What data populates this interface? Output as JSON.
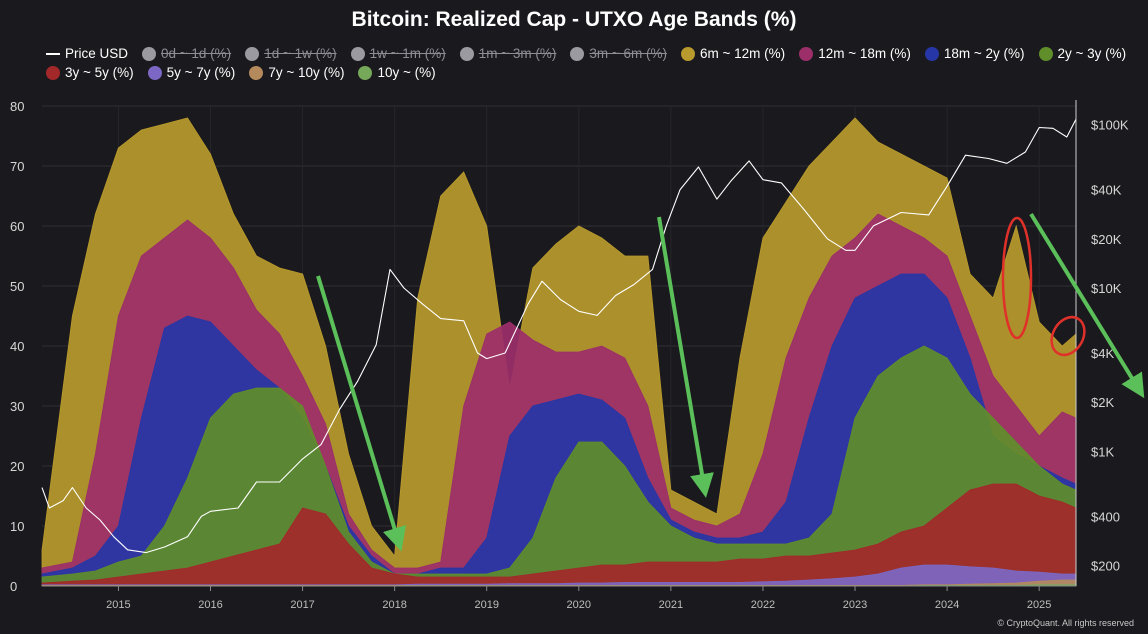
{
  "chart_data": {
    "type": "area",
    "title": "Bitcoin: Realized Cap - UTXO Age Bands (%)",
    "footer": "© CryptoQuant. All rights reserved",
    "stacking": "cumulative",
    "x_unit": "year",
    "x": [
      2014.17,
      2014.5,
      2014.75,
      2015.0,
      2015.25,
      2015.5,
      2015.75,
      2016.0,
      2016.25,
      2016.5,
      2016.75,
      2017.0,
      2017.25,
      2017.5,
      2017.75,
      2018.0,
      2018.25,
      2018.5,
      2018.75,
      2019.0,
      2019.25,
      2019.5,
      2019.75,
      2020.0,
      2020.25,
      2020.5,
      2020.75,
      2021.0,
      2021.25,
      2021.5,
      2021.75,
      2022.0,
      2022.25,
      2022.5,
      2022.75,
      2023.0,
      2023.25,
      2023.5,
      2023.75,
      2024.0,
      2024.25,
      2024.5,
      2024.75,
      2025.0,
      2025.25,
      2025.4
    ],
    "left_axis": {
      "ticks": [
        0,
        10,
        20,
        30,
        40,
        50,
        60,
        70,
        80
      ],
      "range": [
        0,
        80
      ]
    },
    "right_axis": {
      "scale": "log",
      "ticks": [
        200,
        400,
        1000,
        2000,
        4000,
        10000,
        20000,
        40000,
        100000
      ],
      "tick_labels": [
        "$200",
        "$400",
        "$1K",
        "$2K",
        "$4K",
        "$10K",
        "$20K",
        "$40K",
        "$100K"
      ],
      "range": [
        150,
        130000
      ]
    },
    "x_ticks": [
      2015,
      2016,
      2017,
      2018,
      2019,
      2020,
      2021,
      2022,
      2023,
      2024,
      2025
    ],
    "x_tick_labels": [
      "2015",
      "2016",
      "2017",
      "2018",
      "2019",
      "2020",
      "2021",
      "2022",
      "2023",
      "2024",
      "2025"
    ],
    "legend": [
      {
        "label": "Price USD",
        "type": "line",
        "color": "#ffffff",
        "active": true
      },
      {
        "label": "0d ~ 1d (%)",
        "color": "#9a9aa0",
        "active": false
      },
      {
        "label": "1d ~ 1w (%)",
        "color": "#9a9aa0",
        "active": false
      },
      {
        "label": "1w ~ 1m (%)",
        "color": "#9a9aa0",
        "active": false
      },
      {
        "label": "1m ~ 3m (%)",
        "color": "#9a9aa0",
        "active": false
      },
      {
        "label": "3m ~ 6m (%)",
        "color": "#9a9aa0",
        "active": false
      },
      {
        "label": "6m ~ 12m (%)",
        "color": "#b99a2c",
        "active": true
      },
      {
        "label": "12m ~ 18m (%)",
        "color": "#9c2e6a",
        "active": true
      },
      {
        "label": "18m ~ 2y (%)",
        "color": "#2736a6",
        "active": true
      },
      {
        "label": "2y ~ 3y (%)",
        "color": "#5f8e2a",
        "active": true
      },
      {
        "label": "3y ~ 5y (%)",
        "color": "#a3282a",
        "active": true
      },
      {
        "label": "5y ~ 7y (%)",
        "color": "#7c68c4",
        "active": true
      },
      {
        "label": "7y ~ 10y (%)",
        "color": "#b48a5c",
        "active": true
      },
      {
        "label": "10y ~ (%)",
        "color": "#76a85a",
        "active": true
      }
    ],
    "series": [
      {
        "name": "6m ~ 12m (%)",
        "color": "#b99a2c",
        "values": [
          6,
          45,
          62,
          73,
          76,
          77,
          78,
          72,
          62,
          55,
          53,
          52,
          40,
          22,
          10,
          5,
          48,
          65,
          69,
          60,
          33,
          53,
          57,
          60,
          58,
          55,
          55,
          16,
          14,
          12,
          38,
          58,
          64,
          70,
          74,
          78,
          74,
          72,
          70,
          68,
          52,
          48,
          60,
          44,
          40,
          42
        ]
      },
      {
        "name": "12m ~ 18m (%)",
        "color": "#9c2e6a",
        "values": [
          3,
          4,
          22,
          45,
          55,
          58,
          61,
          58,
          53,
          46,
          42,
          35,
          27,
          12,
          6,
          3,
          3,
          4,
          30,
          42,
          44,
          41,
          39,
          39,
          40,
          38,
          30,
          13,
          11,
          10,
          12,
          22,
          38,
          48,
          55,
          58,
          62,
          60,
          58,
          55,
          45,
          35,
          30,
          25,
          29,
          28
        ]
      },
      {
        "name": "18m ~ 2y (%)",
        "color": "#2736a6",
        "values": [
          2,
          3,
          5,
          10,
          28,
          43,
          45,
          44,
          40,
          36,
          33,
          28,
          20,
          10,
          5,
          2,
          2,
          3,
          3,
          8,
          25,
          30,
          31,
          32,
          31,
          28,
          18,
          11,
          9,
          8,
          8,
          9,
          14,
          28,
          40,
          48,
          50,
          52,
          52,
          48,
          38,
          25,
          22,
          20,
          18,
          17
        ]
      },
      {
        "name": "2y ~ 3y (%)",
        "color": "#5f8e2a",
        "values": [
          1.5,
          2,
          2.5,
          4,
          5,
          10,
          18,
          28,
          32,
          33,
          33,
          30,
          20,
          9,
          4,
          2,
          2,
          2,
          2,
          2,
          3,
          8,
          18,
          24,
          24,
          20,
          14,
          10,
          8,
          7,
          7,
          7,
          7,
          8,
          12,
          28,
          35,
          38,
          40,
          38,
          32,
          28,
          24,
          20,
          17,
          16
        ]
      },
      {
        "name": "3y ~ 5y (%)",
        "color": "#a3282a",
        "values": [
          0.5,
          0.8,
          1,
          1.5,
          2,
          2.5,
          3,
          4,
          5,
          6,
          7,
          13,
          12,
          7,
          3,
          2,
          1.5,
          1.5,
          1.5,
          1.5,
          1.5,
          2,
          2.5,
          3,
          3.5,
          3.5,
          4,
          4,
          4,
          4,
          4.5,
          4.5,
          5,
          5,
          5.5,
          6,
          7,
          9,
          10,
          13,
          16,
          17,
          17,
          15,
          14,
          13
        ]
      },
      {
        "name": "5y ~ 7y (%)",
        "color": "#7c68c4",
        "values": [
          0.2,
          0.2,
          0.2,
          0.2,
          0.2,
          0.2,
          0.2,
          0.2,
          0.2,
          0.2,
          0.2,
          0.2,
          0.2,
          0.2,
          0.2,
          0.2,
          0.3,
          0.3,
          0.3,
          0.3,
          0.4,
          0.4,
          0.4,
          0.5,
          0.5,
          0.6,
          0.6,
          0.6,
          0.6,
          0.6,
          0.6,
          0.7,
          0.8,
          1.0,
          1.2,
          1.5,
          2.0,
          3.0,
          3.5,
          3.5,
          3.2,
          3.0,
          2.5,
          2.3,
          2.0,
          2.0
        ]
      },
      {
        "name": "7y ~ 10y (%)",
        "color": "#b48a5c",
        "values": [
          0.1,
          0.1,
          0.1,
          0.1,
          0.1,
          0.1,
          0.1,
          0.1,
          0.1,
          0.1,
          0.1,
          0.1,
          0.1,
          0.1,
          0.1,
          0.1,
          0.1,
          0.1,
          0.1,
          0.1,
          0.1,
          0.1,
          0.1,
          0.1,
          0.1,
          0.1,
          0.1,
          0.1,
          0.1,
          0.1,
          0.1,
          0.1,
          0.1,
          0.1,
          0.1,
          0.1,
          0.1,
          0.1,
          0.2,
          0.2,
          0.3,
          0.4,
          0.5,
          0.8,
          1.0,
          1.0
        ]
      },
      {
        "name": "10y ~ (%)",
        "color": "#76a85a",
        "values": [
          0,
          0,
          0,
          0,
          0,
          0,
          0,
          0,
          0,
          0,
          0,
          0,
          0,
          0,
          0,
          0,
          0,
          0,
          0,
          0,
          0,
          0,
          0,
          0,
          0,
          0,
          0,
          0,
          0,
          0,
          0,
          0,
          0,
          0,
          0,
          0,
          0,
          0,
          0.1,
          0.1,
          0.1,
          0.1,
          0.1,
          0.2,
          0.2,
          0.2
        ]
      }
    ],
    "price": {
      "name": "Price USD",
      "color": "#ffffff",
      "x": [
        2014.17,
        2014.25,
        2014.4,
        2014.5,
        2014.65,
        2014.8,
        2014.95,
        2015.1,
        2015.3,
        2015.5,
        2015.75,
        2015.9,
        2016.0,
        2016.3,
        2016.5,
        2016.75,
        2017.0,
        2017.2,
        2017.4,
        2017.6,
        2017.8,
        2017.95,
        2018.1,
        2018.3,
        2018.5,
        2018.75,
        2018.9,
        2019.0,
        2019.2,
        2019.45,
        2019.6,
        2019.8,
        2020.0,
        2020.2,
        2020.4,
        2020.6,
        2020.8,
        2020.95,
        2021.1,
        2021.3,
        2021.5,
        2021.65,
        2021.85,
        2022.0,
        2022.2,
        2022.45,
        2022.7,
        2022.9,
        2023.0,
        2023.2,
        2023.5,
        2023.8,
        2024.0,
        2024.2,
        2024.45,
        2024.65,
        2024.85,
        2025.0,
        2025.15,
        2025.3,
        2025.4
      ],
      "values": [
        600,
        450,
        500,
        600,
        450,
        380,
        300,
        250,
        240,
        260,
        300,
        400,
        430,
        450,
        650,
        650,
        900,
        1100,
        1800,
        2700,
        4500,
        13000,
        10000,
        8000,
        6500,
        6300,
        4000,
        3700,
        4000,
        8000,
        11000,
        8500,
        7200,
        6800,
        9000,
        10500,
        13000,
        24000,
        40000,
        55000,
        35000,
        45000,
        60000,
        46000,
        44000,
        30000,
        20000,
        17000,
        17000,
        24000,
        29000,
        28000,
        42000,
        65000,
        62000,
        58000,
        68000,
        96000,
        95000,
        84000,
        108000
      ]
    }
  }
}
